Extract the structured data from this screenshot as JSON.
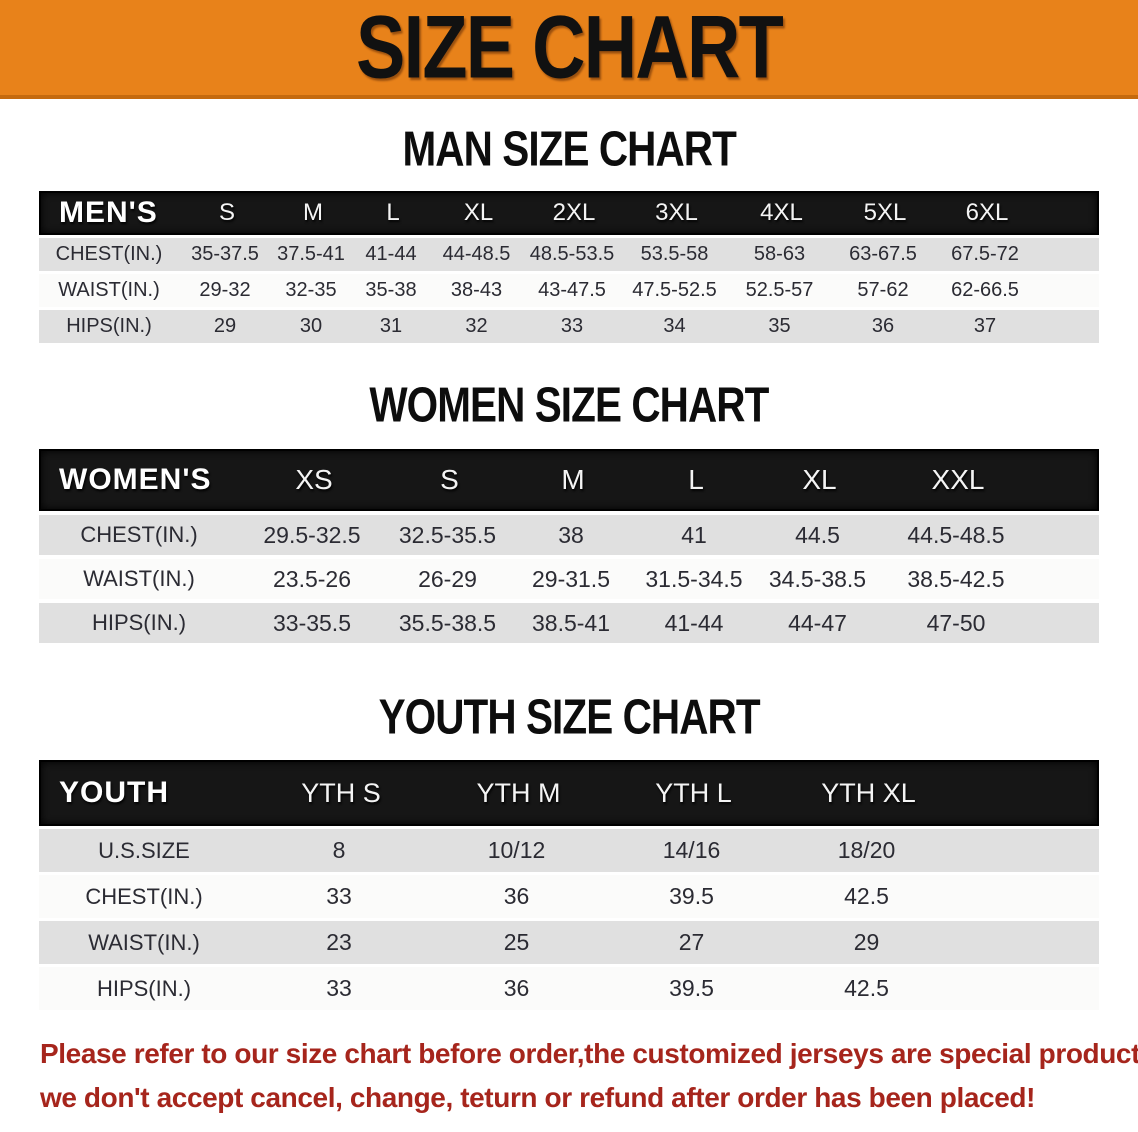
{
  "banner": {
    "title": "SIZE CHART"
  },
  "sections": [
    {
      "id": "men",
      "heading": "MAN SIZE CHART",
      "table": {
        "header_label": "MEN'S",
        "columns": [
          "S",
          "M",
          "L",
          "XL",
          "2XL",
          "3XL",
          "4XL",
          "5XL",
          "6XL"
        ],
        "rows": [
          {
            "label": "CHEST(IN.)",
            "values": [
              "35-37.5",
              "37.5-41",
              "41-44",
              "44-48.5",
              "48.5-53.5",
              "53.5-58",
              "58-63",
              "63-67.5",
              "67.5-72"
            ]
          },
          {
            "label": "WAIST(IN.)",
            "values": [
              "29-32",
              "32-35",
              "35-38",
              "38-43",
              "43-47.5",
              "47.5-52.5",
              "52.5-57",
              "57-62",
              "62-66.5"
            ]
          },
          {
            "label": "HIPS(IN.)",
            "values": [
              "29",
              "30",
              "31",
              "32",
              "33",
              "34",
              "35",
              "36",
              "37"
            ]
          }
        ]
      }
    },
    {
      "id": "women",
      "heading": "WOMEN SIZE CHART",
      "table": {
        "header_label": "WOMEN'S",
        "columns": [
          "XS",
          "S",
          "M",
          "L",
          "XL",
          "XXL"
        ],
        "rows": [
          {
            "label": "CHEST(IN.)",
            "values": [
              "29.5-32.5",
              "32.5-35.5",
              "38",
              "41",
              "44.5",
              "44.5-48.5"
            ]
          },
          {
            "label": "WAIST(IN.)",
            "values": [
              "23.5-26",
              "26-29",
              "29-31.5",
              "31.5-34.5",
              "34.5-38.5",
              "38.5-42.5"
            ]
          },
          {
            "label": "HIPS(IN.)",
            "values": [
              "33-35.5",
              "35.5-38.5",
              "38.5-41",
              "41-44",
              "44-47",
              "47-50"
            ]
          }
        ]
      }
    },
    {
      "id": "youth",
      "heading": "YOUTH SIZE CHART",
      "table": {
        "header_label": "YOUTH",
        "columns": [
          "YTH S",
          "YTH M",
          "YTH L",
          "YTH XL"
        ],
        "rows": [
          {
            "label": "U.S.SIZE",
            "values": [
              "8",
              "10/12",
              "14/16",
              "18/20"
            ]
          },
          {
            "label": "CHEST(IN.)",
            "values": [
              "33",
              "36",
              "39.5",
              "42.5"
            ]
          },
          {
            "label": "WAIST(IN.)",
            "values": [
              "23",
              "25",
              "27",
              "29"
            ]
          },
          {
            "label": "HIPS(IN.)",
            "values": [
              "33",
              "36",
              "39.5",
              "42.5"
            ]
          }
        ]
      }
    }
  ],
  "disclaimer": {
    "line1": "Please refer to our size chart before order,the customized jerseys are special products,",
    "line2": "we don't accept cancel, change, teturn or refund after order has been placed!"
  },
  "colors": {
    "banner_bg": "#E8821A",
    "banner_text": "#111111",
    "table_header_bg": "#161616",
    "row_shade": "#E0E0E0",
    "disclaimer_red": "#A6251C"
  }
}
